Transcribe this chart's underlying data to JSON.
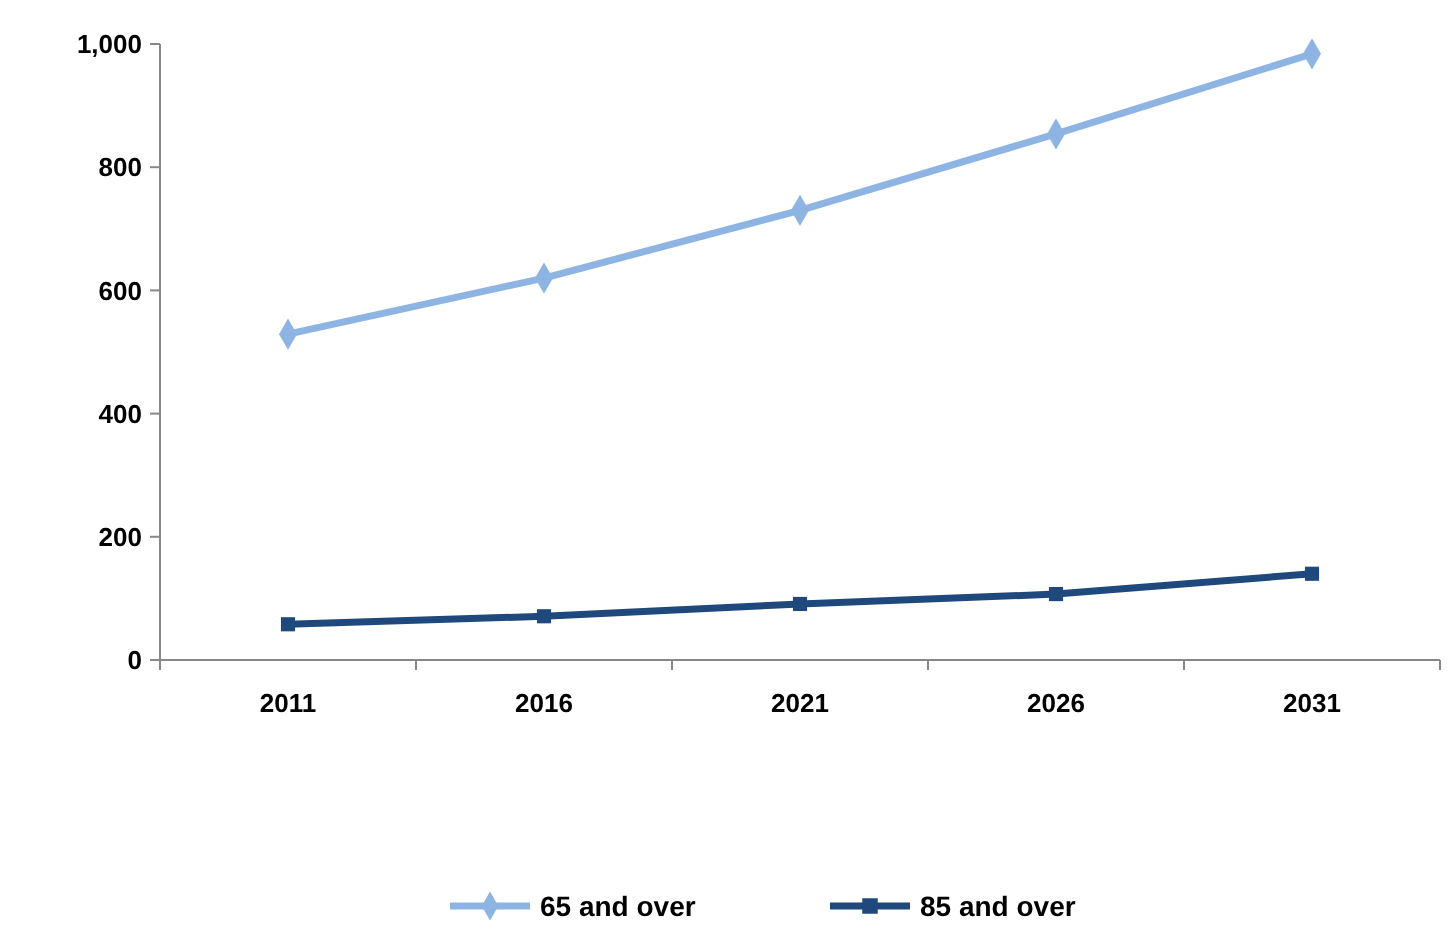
{
  "chart_data": {
    "type": "line",
    "categories": [
      "2011",
      "2016",
      "2021",
      "2026",
      "2031"
    ],
    "series": [
      {
        "name": "65 and over",
        "color": "#8eb4e3",
        "marker": "diamond",
        "values": [
          529,
          620,
          730,
          854,
          984
        ]
      },
      {
        "name": "85 and over",
        "color": "#1f497d",
        "marker": "square",
        "values": [
          58,
          71,
          91,
          107,
          140
        ]
      }
    ],
    "ylim": [
      0,
      1000
    ],
    "yticks": [
      0,
      {
        "value": 200,
        "label": "200"
      },
      {
        "value": 400,
        "label": "400"
      },
      {
        "value": 600,
        "label": "600"
      },
      {
        "value": 800,
        "label": "800"
      },
      {
        "value": 1000,
        "label": "1,000"
      }
    ],
    "grid": false,
    "legend": "bottom"
  }
}
